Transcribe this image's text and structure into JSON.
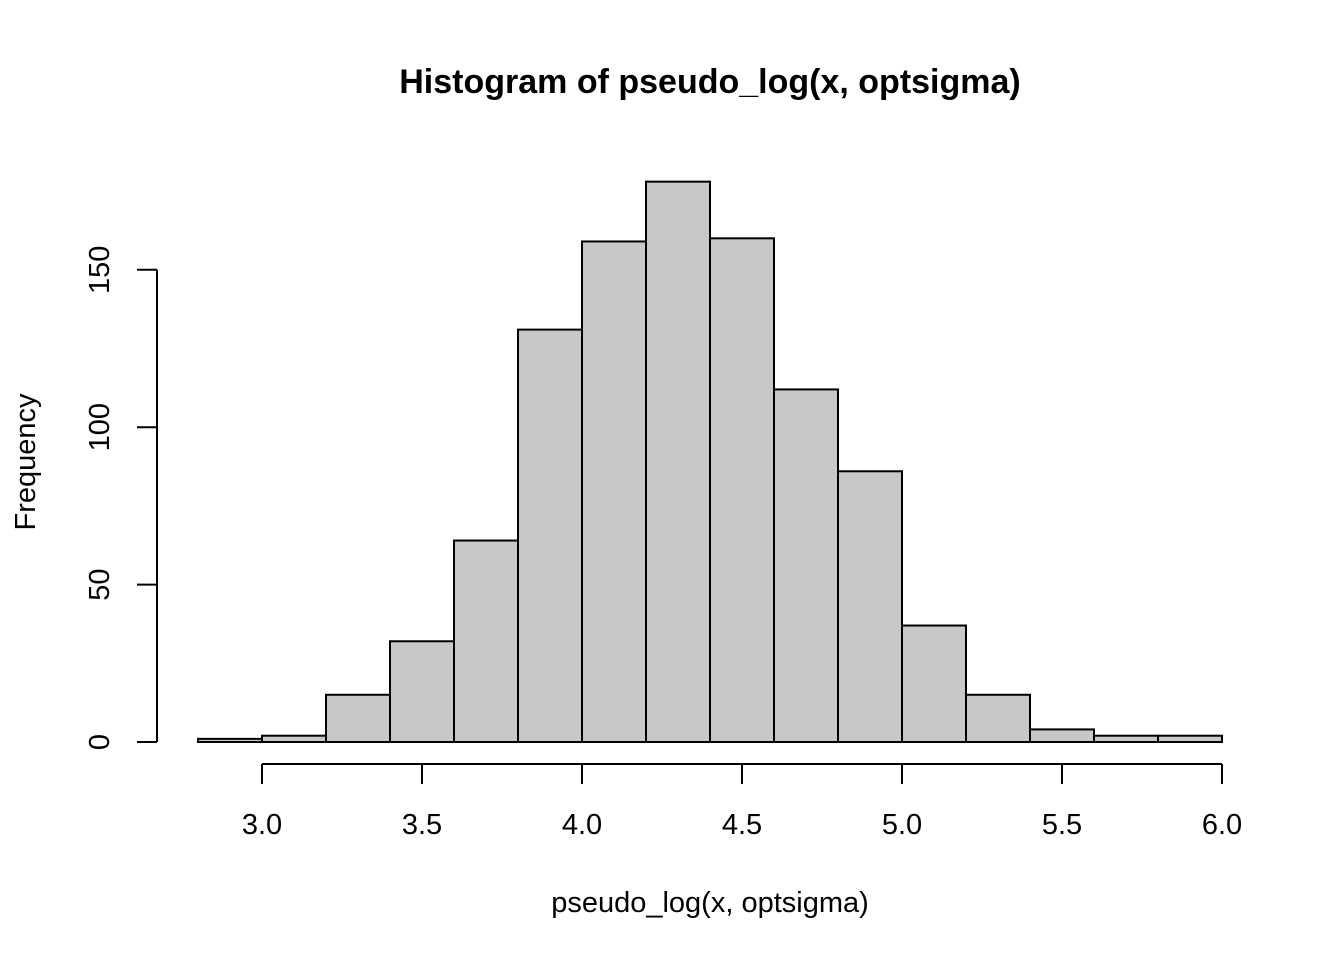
{
  "chart_data": {
    "type": "bar",
    "subtype": "histogram",
    "title": "Histogram of pseudo_log(x, optsigma)",
    "xlabel": "pseudo_log(x, optsigma)",
    "ylabel": "Frequency",
    "bin_width": 0.2,
    "bins": [
      {
        "start": 2.8,
        "end": 3.0,
        "count": 1
      },
      {
        "start": 3.0,
        "end": 3.2,
        "count": 2
      },
      {
        "start": 3.2,
        "end": 3.4,
        "count": 15
      },
      {
        "start": 3.4,
        "end": 3.6,
        "count": 32
      },
      {
        "start": 3.6,
        "end": 3.8,
        "count": 64
      },
      {
        "start": 3.8,
        "end": 4.0,
        "count": 131
      },
      {
        "start": 4.0,
        "end": 4.2,
        "count": 159
      },
      {
        "start": 4.2,
        "end": 4.4,
        "count": 178
      },
      {
        "start": 4.4,
        "end": 4.6,
        "count": 160
      },
      {
        "start": 4.6,
        "end": 4.8,
        "count": 112
      },
      {
        "start": 4.8,
        "end": 5.0,
        "count": 86
      },
      {
        "start": 5.0,
        "end": 5.2,
        "count": 37
      },
      {
        "start": 5.2,
        "end": 5.4,
        "count": 15
      },
      {
        "start": 5.4,
        "end": 5.6,
        "count": 4
      },
      {
        "start": 5.6,
        "end": 5.8,
        "count": 2
      },
      {
        "start": 5.8,
        "end": 6.0,
        "count": 2
      }
    ],
    "x_ticks": [
      3.0,
      3.5,
      4.0,
      4.5,
      5.0,
      5.5,
      6.0
    ],
    "x_tick_labels": [
      "3.0",
      "3.5",
      "4.0",
      "4.5",
      "5.0",
      "5.5",
      "6.0"
    ],
    "y_ticks": [
      0,
      50,
      100,
      150
    ],
    "y_tick_labels": [
      "0",
      "50",
      "100",
      "150"
    ],
    "xlim": [
      2.8,
      6.0
    ],
    "ylim": [
      0,
      178
    ],
    "grid": false,
    "legend": "none",
    "bar_fill": "#c8c8c8",
    "bar_stroke": "#000000"
  }
}
